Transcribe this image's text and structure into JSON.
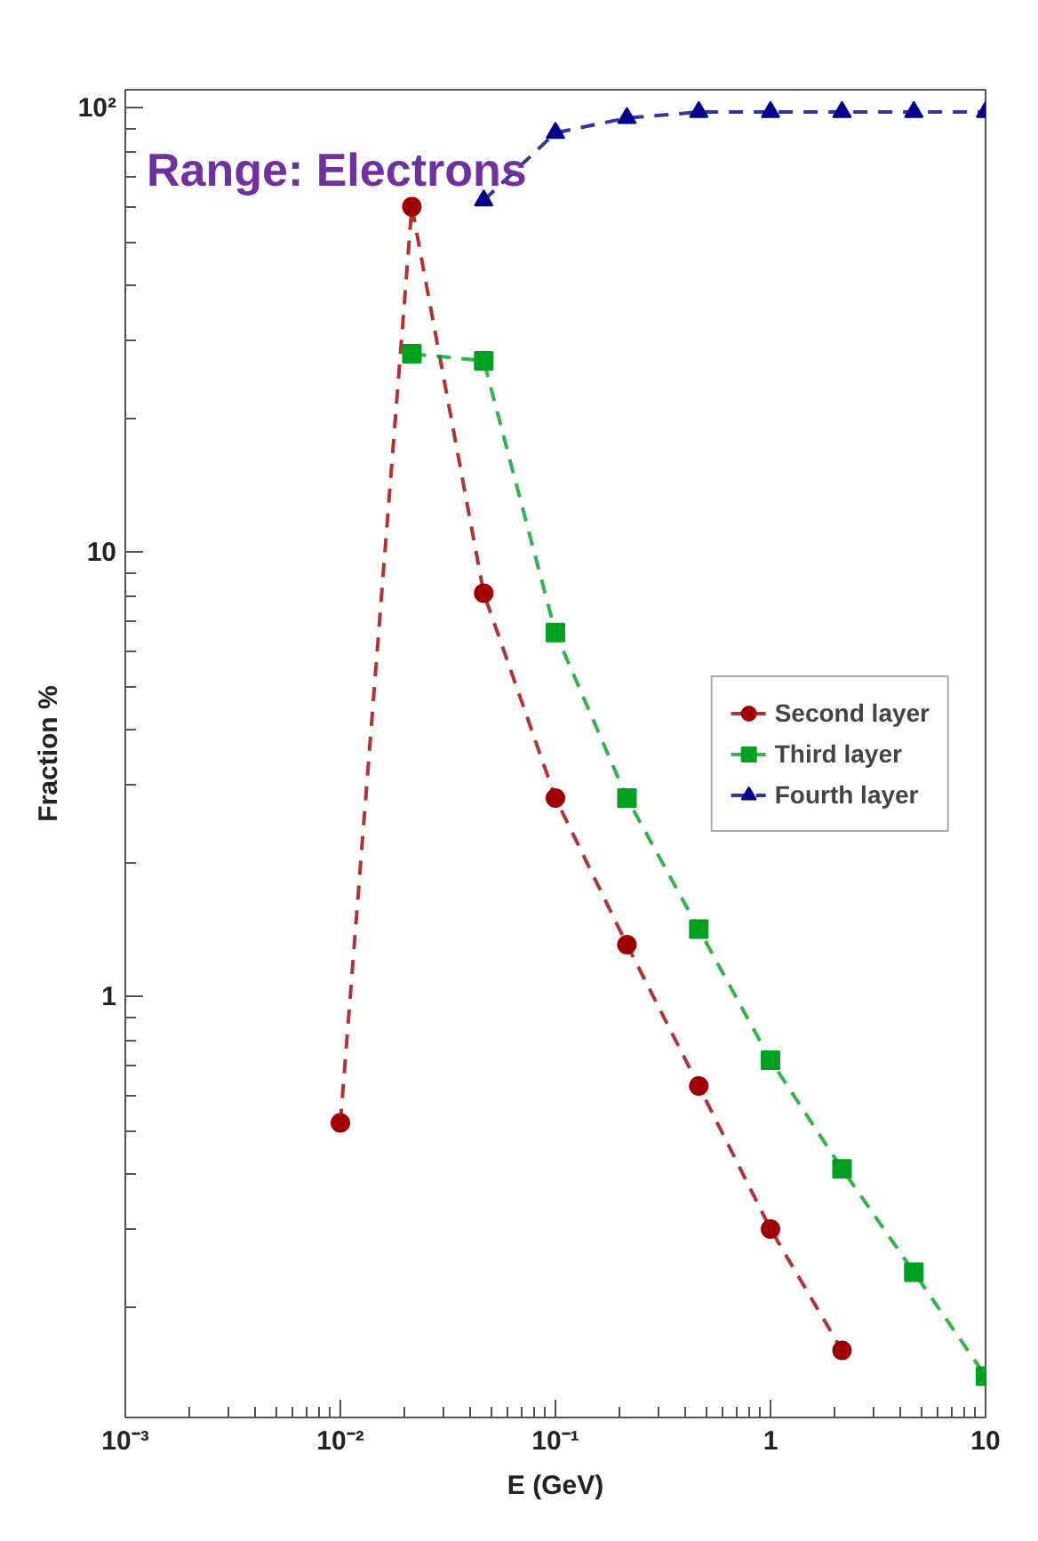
{
  "chart_data": {
    "type": "line",
    "xlabel": "E (GeV)",
    "ylabel": "Fraction %",
    "log": "xy",
    "xlim": [
      0.001,
      10
    ],
    "ylim": [
      0.113,
      110
    ],
    "xticks": [
      {
        "value": 0.001,
        "label": "10⁻³"
      },
      {
        "value": 0.01,
        "label": "10⁻²"
      },
      {
        "value": 0.1,
        "label": "10⁻¹"
      },
      1,
      10
    ],
    "yticks": [
      1,
      10,
      {
        "value": 100,
        "label": "10²"
      }
    ],
    "grid": false,
    "legend": "right",
    "line_style": "dashed",
    "annotations": [
      "Range: Electrons"
    ],
    "series": [
      {
        "name": "Second layer",
        "color": "#a00000",
        "marker": "circle",
        "x": [
          0.01,
          0.0215,
          0.0464,
          0.1,
          0.215,
          0.464,
          1,
          2.15
        ],
        "values": [
          0.52,
          60,
          8.1,
          2.8,
          1.31,
          0.63,
          0.3,
          0.16
        ]
      },
      {
        "name": "Third layer",
        "color": "#00a020",
        "marker": "square",
        "x": [
          0.0215,
          0.0464,
          0.1,
          0.215,
          0.464,
          1,
          2.15,
          4.64,
          10
        ],
        "values": [
          28,
          27,
          6.6,
          2.8,
          1.42,
          0.72,
          0.41,
          0.24,
          0.14
        ]
      },
      {
        "name": "Fourth layer",
        "color": "#00008b",
        "marker": "triangle",
        "x": [
          0.0464,
          0.1,
          0.215,
          0.464,
          1,
          2.15,
          4.64,
          10
        ],
        "values": [
          62,
          88,
          95,
          98,
          98,
          98,
          98,
          98
        ]
      }
    ]
  }
}
